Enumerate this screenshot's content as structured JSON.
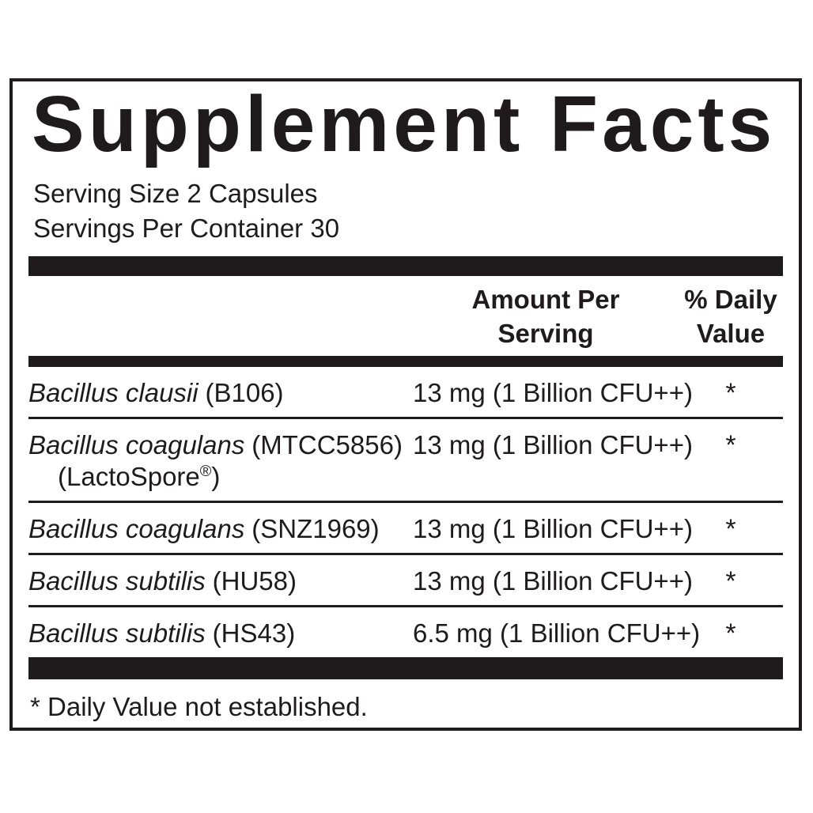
{
  "label": {
    "title": "Supplement Facts",
    "serving_size": "Serving Size 2 Capsules",
    "servings_per_container": "Servings Per Container 30",
    "columns": {
      "amount_header": "Amount Per\nServing",
      "daily_value_header": "% Daily\nValue"
    },
    "rows": [
      {
        "name": "Bacillus clausii",
        "strain": "(B106)",
        "amount": "13 mg (1 Billion CFU++)",
        "daily_value": "*"
      },
      {
        "name": "Bacillus coagulans",
        "strain": "(MTCC5856)",
        "trademark_pre": "(LactoSpore",
        "trademark_sup": "®",
        "trademark_post": ")",
        "amount": "13 mg (1 Billion CFU++)",
        "daily_value": "*"
      },
      {
        "name": "Bacillus coagulans",
        "strain": "(SNZ1969)",
        "amount": "13 mg (1 Billion CFU++)",
        "daily_value": "*"
      },
      {
        "name": "Bacillus subtilis",
        "strain": "(HU58)",
        "amount": "13 mg (1 Billion CFU++)",
        "daily_value": "*"
      },
      {
        "name": "Bacillus subtilis",
        "strain": "(HS43)",
        "amount": "6.5 mg (1 Billion CFU++)",
        "daily_value": "*"
      }
    ],
    "footnote": "* Daily Value not established.",
    "colors": {
      "ink": "#1f1b1c",
      "background": "#ffffff"
    }
  }
}
